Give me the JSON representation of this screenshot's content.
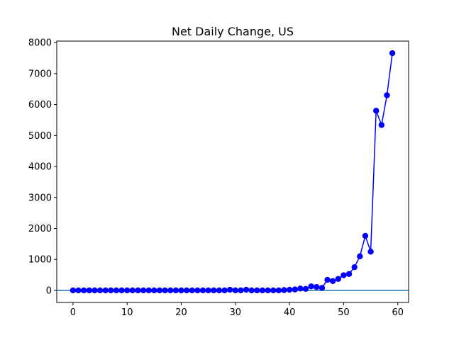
{
  "chart_data": {
    "type": "line",
    "title": "Net Daily Change, US",
    "xlabel": "",
    "ylabel": "",
    "xlim": [
      -3,
      62
    ],
    "ylim": [
      -390,
      8050
    ],
    "xticks": [
      0,
      10,
      20,
      30,
      40,
      50,
      60
    ],
    "yticks": [
      0,
      1000,
      2000,
      3000,
      4000,
      5000,
      6000,
      7000,
      8000
    ],
    "grid": false,
    "legend": "none",
    "reference_line": {
      "y": 0,
      "color": "#1f77b4"
    },
    "series": [
      {
        "color": "#0000ff",
        "marker": "circle",
        "x": [
          0,
          1,
          2,
          3,
          4,
          5,
          6,
          7,
          8,
          9,
          10,
          11,
          12,
          13,
          14,
          15,
          16,
          17,
          18,
          19,
          20,
          21,
          22,
          23,
          24,
          25,
          26,
          27,
          28,
          29,
          30,
          31,
          32,
          33,
          34,
          35,
          36,
          37,
          38,
          39,
          40,
          41,
          42,
          43,
          44,
          45,
          46,
          47,
          48,
          49,
          50,
          51,
          52,
          53,
          54,
          55,
          56,
          57,
          58,
          59
        ],
        "y": [
          0,
          0,
          0,
          0,
          0,
          0,
          0,
          0,
          0,
          0,
          0,
          0,
          0,
          0,
          0,
          0,
          0,
          0,
          0,
          0,
          0,
          0,
          0,
          0,
          0,
          0,
          0,
          0,
          0,
          20,
          0,
          0,
          20,
          0,
          0,
          0,
          0,
          0,
          0,
          10,
          20,
          30,
          60,
          50,
          130,
          110,
          80,
          340,
          300,
          370,
          490,
          530,
          750,
          1100,
          1760,
          1250,
          5800,
          5340,
          6300,
          7660
        ]
      }
    ]
  }
}
